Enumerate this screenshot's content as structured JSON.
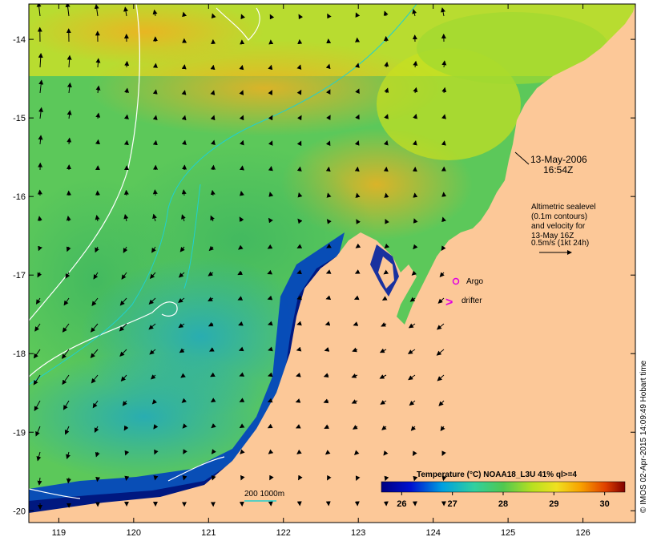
{
  "map": {
    "lon_ticks": [
      119,
      120,
      121,
      122,
      123,
      124,
      125,
      126
    ],
    "lat_ticks": [
      -14,
      -15,
      -16,
      -17,
      -18,
      -19,
      -20
    ],
    "lon_range": [
      118.6,
      126.7
    ],
    "lat_range": [
      -20.15,
      -13.55
    ]
  },
  "annotations": {
    "date": "13-May-2006",
    "time": "16:54Z",
    "altimetry_lines": [
      "Altimetric sealevel",
      "(0.1m contours)",
      "and velocity for",
      "13-May 16Z"
    ],
    "velocity_scale": "0.5m/s (1kt 24h)",
    "argo_label": "Argo",
    "drifter_label": "drifter",
    "drifter_symbol": ">",
    "bathy_label": "200 1000m"
  },
  "colorbar": {
    "title": "Temperature (°C) NOAA18_L3U 41% ql>=4",
    "ticks": [
      26,
      27,
      28,
      29,
      30
    ],
    "range": [
      25.6,
      30.4
    ]
  },
  "credit": "© IMOS 02-Apr-2015 14:09:49 Hobart time",
  "colors": {
    "land": "#fcc898",
    "marker": "#e000e0",
    "bathy": "#20d0d0",
    "contour": "#ffffff"
  }
}
